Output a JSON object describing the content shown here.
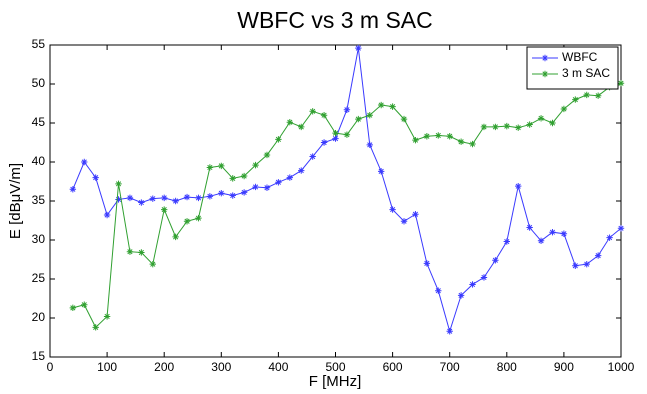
{
  "chart_data": {
    "type": "line",
    "title": "WBFC vs 3 m SAC",
    "xlabel": "F [MHz]",
    "ylabel": "E [dBμV/m]",
    "x": [
      40,
      60,
      80,
      100,
      120,
      140,
      160,
      180,
      200,
      220,
      240,
      260,
      280,
      300,
      320,
      340,
      360,
      380,
      400,
      420,
      440,
      460,
      480,
      500,
      520,
      540,
      560,
      580,
      600,
      620,
      640,
      660,
      680,
      700,
      720,
      740,
      760,
      780,
      800,
      820,
      840,
      860,
      880,
      900,
      920,
      940,
      960,
      980,
      1000
    ],
    "series": [
      {
        "name": "WBFC",
        "color": "#3a3aff",
        "marker": "*",
        "values": [
          36.5,
          40,
          38,
          33.2,
          35.2,
          35.4,
          34.8,
          35.3,
          35.4,
          35,
          35.5,
          35.4,
          35.6,
          36,
          35.7,
          36.1,
          36.8,
          36.7,
          37.4,
          38,
          38.9,
          40.7,
          42.5,
          43,
          46.7,
          54.6,
          42.2,
          38.8,
          33.9,
          32.4,
          33.3,
          27,
          23.5,
          18.3,
          22.9,
          24.3,
          25.2,
          27.4,
          29.8,
          36.9,
          31.6,
          29.9,
          31,
          30.8,
          26.7,
          26.9,
          28,
          30.3,
          31.5
        ]
      },
      {
        "name": "3 m SAC",
        "color": "#30a030",
        "marker": "*",
        "values": [
          21.3,
          21.7,
          18.8,
          20.2,
          37.2,
          28.5,
          28.4,
          26.9,
          33.9,
          30.4,
          32.4,
          32.8,
          39.3,
          39.5,
          37.9,
          38.2,
          39.6,
          40.9,
          42.9,
          45.1,
          44.5,
          46.5,
          46,
          43.7,
          43.5,
          45.5,
          46,
          47.3,
          47.1,
          45.5,
          42.8,
          43.3,
          43.4,
          43.3,
          42.6,
          42.3,
          44.5,
          44.5,
          44.6,
          44.4,
          44.8,
          45.6,
          45,
          46.8,
          48,
          48.6,
          48.5,
          49.6,
          50.1
        ]
      }
    ],
    "xlim": [
      0,
      1000
    ],
    "xticks": [
      0,
      100,
      200,
      300,
      400,
      500,
      600,
      700,
      800,
      900,
      1000
    ],
    "ylim": [
      15,
      55
    ],
    "yticks": [
      15,
      20,
      25,
      30,
      35,
      40,
      45,
      50,
      55
    ],
    "grid": false,
    "legend": "northeast"
  }
}
